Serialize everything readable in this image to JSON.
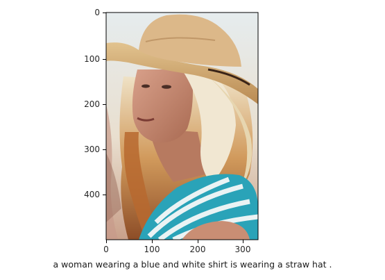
{
  "caption": "a woman wearing a blue and white shirt is wearing a straw hat .",
  "axes": {
    "x_ticks": [
      "0",
      "100",
      "200",
      "300"
    ],
    "y_ticks": [
      "0",
      "100",
      "200",
      "300",
      "400"
    ]
  },
  "image": {
    "subject": "woman in straw cowboy hat and blue-and-white striped shirt"
  },
  "colors": {
    "sky": "#dbe6e6",
    "hat": "#d6b07a",
    "hair": "#c58a4a",
    "shirt_blue": "#2aa3b8",
    "skin": "#c98e74"
  }
}
